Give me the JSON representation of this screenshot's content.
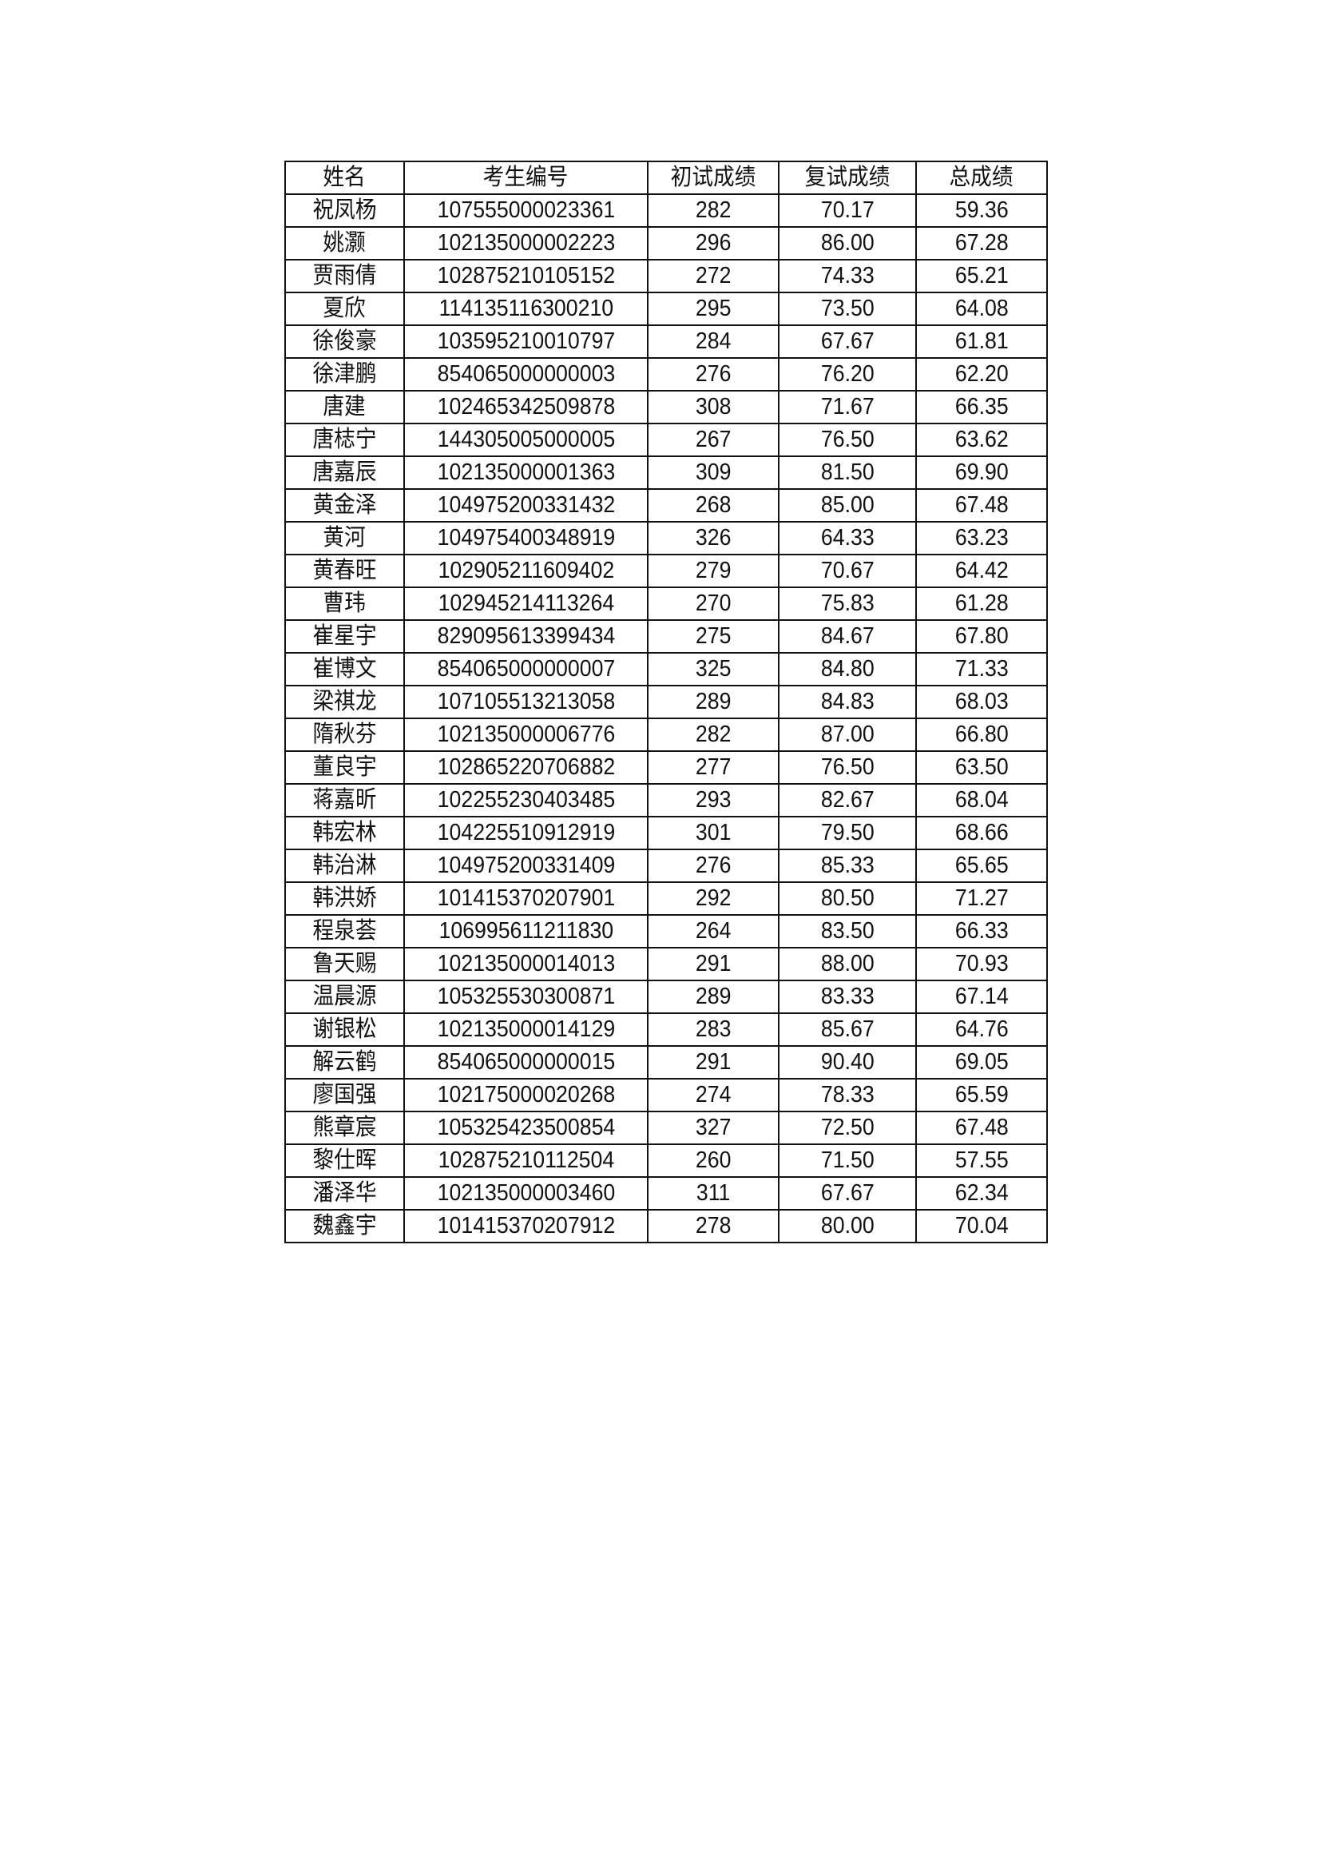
{
  "table": {
    "headers": [
      "姓名",
      "考生编号",
      "初试成绩",
      "复试成绩",
      "总成绩"
    ],
    "rows": [
      [
        "祝凤杨",
        "107555000023361",
        "282",
        "70.17",
        "59.36"
      ],
      [
        "姚灏",
        "102135000002223",
        "296",
        "86.00",
        "67.28"
      ],
      [
        "贾雨倩",
        "102875210105152",
        "272",
        "74.33",
        "65.21"
      ],
      [
        "夏欣",
        "114135116300210",
        "295",
        "73.50",
        "64.08"
      ],
      [
        "徐俊豪",
        "103595210010797",
        "284",
        "67.67",
        "61.81"
      ],
      [
        "徐津鹏",
        "854065000000003",
        "276",
        "76.20",
        "62.20"
      ],
      [
        "唐建",
        "102465342509878",
        "308",
        "71.67",
        "66.35"
      ],
      [
        "唐梽宁",
        "144305005000005",
        "267",
        "76.50",
        "63.62"
      ],
      [
        "唐嘉辰",
        "102135000001363",
        "309",
        "81.50",
        "69.90"
      ],
      [
        "黄金泽",
        "104975200331432",
        "268",
        "85.00",
        "67.48"
      ],
      [
        "黄河",
        "104975400348919",
        "326",
        "64.33",
        "63.23"
      ],
      [
        "黄春旺",
        "102905211609402",
        "279",
        "70.67",
        "64.42"
      ],
      [
        "曹玮",
        "102945214113264",
        "270",
        "75.83",
        "61.28"
      ],
      [
        "崔星宇",
        "829095613399434",
        "275",
        "84.67",
        "67.80"
      ],
      [
        "崔博文",
        "854065000000007",
        "325",
        "84.80",
        "71.33"
      ],
      [
        "梁祺龙",
        "107105513213058",
        "289",
        "84.83",
        "68.03"
      ],
      [
        "隋秋芬",
        "102135000006776",
        "282",
        "87.00",
        "66.80"
      ],
      [
        "董良宇",
        "102865220706882",
        "277",
        "76.50",
        "63.50"
      ],
      [
        "蒋嘉昕",
        "102255230403485",
        "293",
        "82.67",
        "68.04"
      ],
      [
        "韩宏林",
        "104225510912919",
        "301",
        "79.50",
        "68.66"
      ],
      [
        "韩治淋",
        "104975200331409",
        "276",
        "85.33",
        "65.65"
      ],
      [
        "韩洪娇",
        "101415370207901",
        "292",
        "80.50",
        "71.27"
      ],
      [
        "程泉荟",
        "106995611211830",
        "264",
        "83.50",
        "66.33"
      ],
      [
        "鲁天赐",
        "102135000014013",
        "291",
        "88.00",
        "70.93"
      ],
      [
        "温晨源",
        "105325530300871",
        "289",
        "83.33",
        "67.14"
      ],
      [
        "谢银松",
        "102135000014129",
        "283",
        "85.67",
        "64.76"
      ],
      [
        "解云鹤",
        "854065000000015",
        "291",
        "90.40",
        "69.05"
      ],
      [
        "廖国强",
        "102175000020268",
        "274",
        "78.33",
        "65.59"
      ],
      [
        "熊章宸",
        "105325423500854",
        "327",
        "72.50",
        "67.48"
      ],
      [
        "黎仕晖",
        "102875210112504",
        "260",
        "71.50",
        "57.55"
      ],
      [
        "潘泽华",
        "102135000003460",
        "311",
        "67.67",
        "62.34"
      ],
      [
        "魏鑫宇",
        "101415370207912",
        "278",
        "80.00",
        "70.04"
      ]
    ]
  }
}
